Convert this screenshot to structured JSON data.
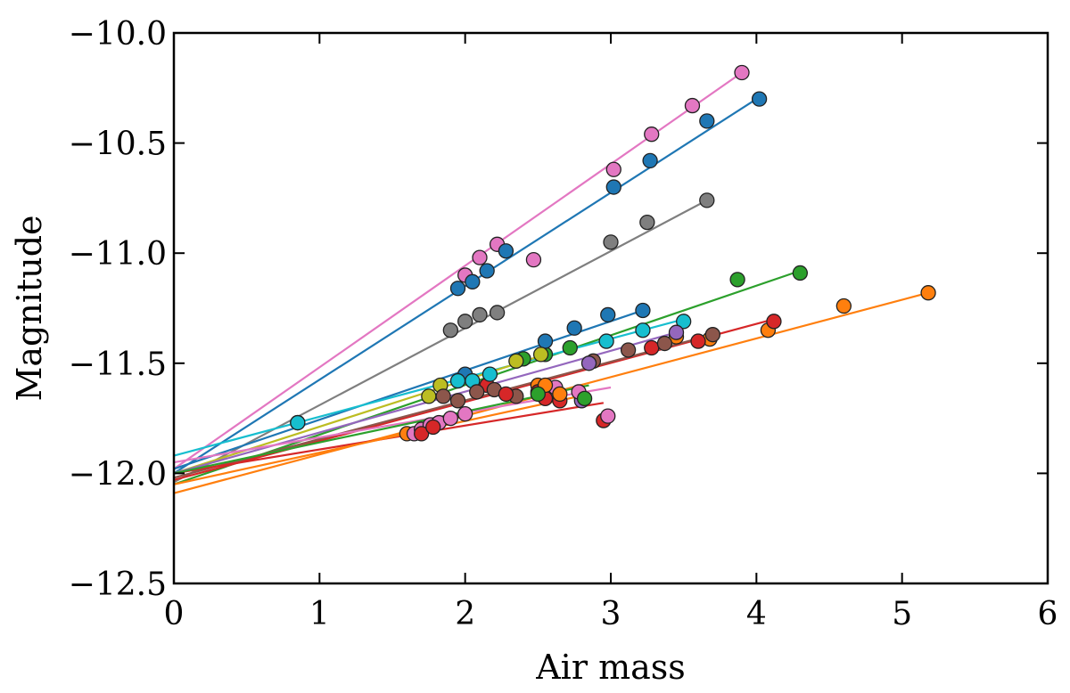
{
  "chart_data": {
    "type": "scatter",
    "title": "",
    "xlabel": "Air mass",
    "ylabel": "Magnitude",
    "xlim": [
      0,
      6
    ],
    "ylim": [
      -12.5,
      -10.0
    ],
    "y_inverted": true,
    "grid": false,
    "xticks": [
      0,
      1,
      2,
      3,
      4,
      5,
      6
    ],
    "yticks": [
      -10.0,
      -10.5,
      -11.0,
      -11.5,
      -12.0,
      -12.5
    ],
    "xtick_labels": [
      "0",
      "1",
      "2",
      "3",
      "4",
      "5",
      "6"
    ],
    "ytick_labels": [
      "−10.0",
      "−10.5",
      "−11.0",
      "−11.5",
      "−12.0",
      "−12.5"
    ],
    "series": [
      {
        "name": "pink",
        "color": "#e377c2",
        "fit": {
          "x0": 0.0,
          "y0": -11.98,
          "x1": 3.9,
          "y1": -10.18
        },
        "points": [
          [
            2.0,
            -11.1
          ],
          [
            2.1,
            -11.02
          ],
          [
            2.22,
            -10.96
          ],
          [
            2.47,
            -11.03
          ],
          [
            3.02,
            -10.62
          ],
          [
            3.28,
            -10.46
          ],
          [
            3.56,
            -10.33
          ],
          [
            3.9,
            -10.18
          ]
        ]
      },
      {
        "name": "blue-upper",
        "color": "#1f77b4",
        "fit": {
          "x0": 0.0,
          "y0": -12.0,
          "x1": 4.0,
          "y1": -10.3
        },
        "points": [
          [
            1.95,
            -11.16
          ],
          [
            2.05,
            -11.13
          ],
          [
            2.15,
            -11.08
          ],
          [
            2.28,
            -10.99
          ],
          [
            3.02,
            -10.7
          ],
          [
            3.27,
            -10.58
          ],
          [
            3.66,
            -10.4
          ],
          [
            4.02,
            -10.3
          ]
        ]
      },
      {
        "name": "gray",
        "color": "#7f7f7f",
        "fit": {
          "x0": 0.0,
          "y0": -12.04,
          "x1": 3.66,
          "y1": -10.76
        },
        "points": [
          [
            0.85,
            -11.77
          ],
          [
            1.9,
            -11.35
          ],
          [
            2.0,
            -11.31
          ],
          [
            2.1,
            -11.28
          ],
          [
            2.22,
            -11.27
          ],
          [
            3.0,
            -10.95
          ],
          [
            3.25,
            -10.86
          ],
          [
            3.66,
            -10.76
          ]
        ]
      },
      {
        "name": "green",
        "color": "#2ca02c",
        "fit": {
          "x0": 0.0,
          "y0": -12.05,
          "x1": 4.3,
          "y1": -11.08
        },
        "points": [
          [
            2.4,
            -11.48
          ],
          [
            2.55,
            -11.46
          ],
          [
            2.72,
            -11.43
          ],
          [
            3.87,
            -11.12
          ],
          [
            4.3,
            -11.09
          ]
        ]
      },
      {
        "name": "orange",
        "color": "#ff7f0e",
        "fit": {
          "x0": 0.0,
          "y0": -12.09,
          "x1": 5.18,
          "y1": -11.18
        },
        "points": [
          [
            1.6,
            -11.82
          ],
          [
            2.5,
            -11.6
          ],
          [
            3.45,
            -11.38
          ],
          [
            3.68,
            -11.39
          ],
          [
            4.08,
            -11.35
          ],
          [
            4.6,
            -11.24
          ],
          [
            5.18,
            -11.18
          ]
        ]
      },
      {
        "name": "red",
        "color": "#d62728",
        "fit": {
          "x0": 0.0,
          "y0": -12.03,
          "x1": 4.12,
          "y1": -11.3
        },
        "points": [
          [
            2.15,
            -11.6
          ],
          [
            2.5,
            -11.63
          ],
          [
            2.8,
            -11.66
          ],
          [
            2.95,
            -11.76
          ],
          [
            3.28,
            -11.43
          ],
          [
            3.6,
            -11.4
          ],
          [
            4.12,
            -11.31
          ]
        ]
      },
      {
        "name": "blue-middle",
        "color": "#1f77b4",
        "fit": {
          "x0": 0.0,
          "y0": -11.98,
          "x1": 3.22,
          "y1": -11.26
        },
        "points": [
          [
            2.0,
            -11.55
          ],
          [
            2.55,
            -11.4
          ],
          [
            2.75,
            -11.34
          ],
          [
            2.98,
            -11.28
          ],
          [
            3.22,
            -11.26
          ]
        ]
      },
      {
        "name": "cyan",
        "color": "#17becf",
        "fit": {
          "x0": 0.0,
          "y0": -11.92,
          "x1": 3.5,
          "y1": -11.3
        },
        "points": [
          [
            0.85,
            -11.77
          ],
          [
            1.95,
            -11.58
          ],
          [
            2.05,
            -11.58
          ],
          [
            2.17,
            -11.55
          ],
          [
            2.97,
            -11.4
          ],
          [
            3.22,
            -11.35
          ],
          [
            3.5,
            -11.31
          ]
        ]
      },
      {
        "name": "olive",
        "color": "#bcbd22",
        "fit": {
          "x0": 0.0,
          "y0": -12.0,
          "x1": 2.55,
          "y1": -11.46
        },
        "points": [
          [
            1.75,
            -11.65
          ],
          [
            1.83,
            -11.6
          ],
          [
            2.35,
            -11.49
          ],
          [
            2.52,
            -11.46
          ]
        ]
      },
      {
        "name": "brown",
        "color": "#8c564b",
        "fit": {
          "x0": 0.0,
          "y0": -12.02,
          "x1": 3.7,
          "y1": -11.37
        },
        "points": [
          [
            1.85,
            -11.65
          ],
          [
            1.95,
            -11.67
          ],
          [
            2.08,
            -11.63
          ],
          [
            2.2,
            -11.62
          ],
          [
            2.35,
            -11.65
          ],
          [
            2.88,
            -11.49
          ],
          [
            3.12,
            -11.44
          ],
          [
            3.37,
            -11.41
          ],
          [
            3.7,
            -11.37
          ]
        ]
      },
      {
        "name": "purple",
        "color": "#9467bd",
        "fit": {
          "x0": 0.0,
          "y0": -12.0,
          "x1": 3.45,
          "y1": -11.36
        },
        "points": [
          [
            2.8,
            -11.67
          ],
          [
            2.85,
            -11.5
          ],
          [
            3.45,
            -11.36
          ]
        ]
      },
      {
        "name": "pink-lower",
        "color": "#e377c2",
        "fit": {
          "x0": 0.0,
          "y0": -11.95,
          "x1": 3.0,
          "y1": -11.61
        },
        "points": [
          [
            1.65,
            -11.82
          ],
          [
            1.7,
            -11.8
          ],
          [
            1.76,
            -11.78
          ],
          [
            1.82,
            -11.77
          ],
          [
            1.9,
            -11.75
          ],
          [
            2.0,
            -11.73
          ],
          [
            2.58,
            -11.63
          ],
          [
            2.62,
            -11.61
          ],
          [
            2.78,
            -11.63
          ],
          [
            2.98,
            -11.74
          ]
        ]
      },
      {
        "name": "red-lower",
        "color": "#d62728",
        "fit": {
          "x0": 0.0,
          "y0": -12.0,
          "x1": 2.95,
          "y1": -11.68
        },
        "points": [
          [
            1.7,
            -11.82
          ],
          [
            1.78,
            -11.79
          ],
          [
            2.28,
            -11.64
          ],
          [
            2.55,
            -11.66
          ],
          [
            2.65,
            -11.67
          ]
        ]
      },
      {
        "name": "orange-lower",
        "color": "#ff7f0e",
        "fit": {
          "x0": 0.0,
          "y0": -12.05,
          "x1": 2.85,
          "y1": -11.64
        },
        "points": [
          [
            2.55,
            -11.6
          ],
          [
            2.65,
            -11.64
          ]
        ]
      },
      {
        "name": "green-lower",
        "color": "#2ca02c",
        "fit": {
          "x0": 0.0,
          "y0": -12.0,
          "x1": 2.85,
          "y1": -11.6
        },
        "points": [
          [
            2.5,
            -11.64
          ],
          [
            2.82,
            -11.66
          ]
        ]
      }
    ]
  }
}
